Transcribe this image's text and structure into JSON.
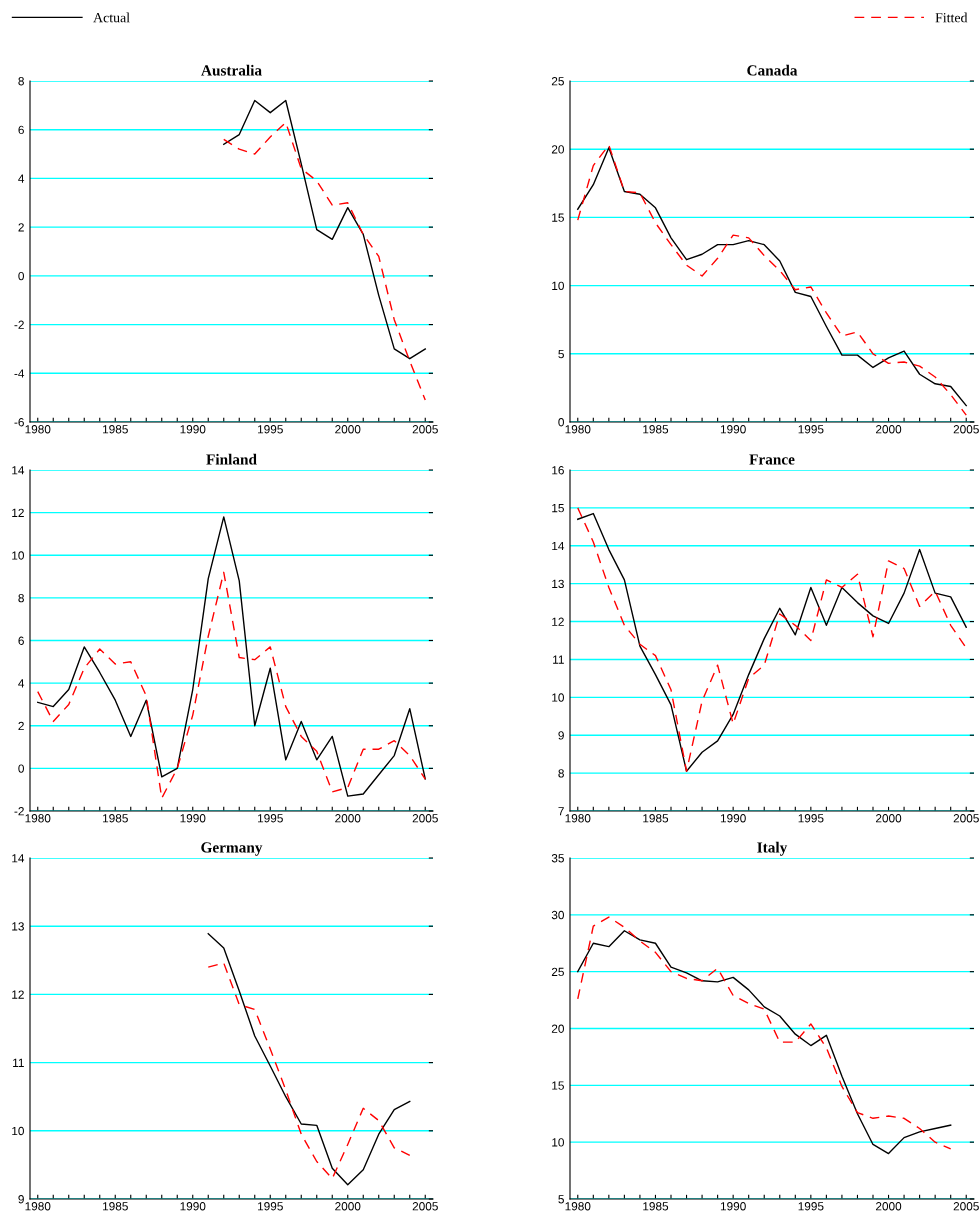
{
  "chart_data": [
    {
      "type": "line",
      "title": "Australia",
      "legend": "top",
      "grid": "y",
      "xlim": [
        1979.5,
        2005.5
      ],
      "ylim": [
        -6,
        8
      ],
      "yticks": [
        -6,
        -4,
        -2,
        0,
        2,
        4,
        6,
        8
      ],
      "xticks": [
        1980,
        {
          "value": 1981,
          "label": null
        },
        {
          "value": 1982,
          "label": null
        },
        {
          "value": 1983,
          "label": null
        },
        {
          "value": 1984,
          "label": null
        },
        1985,
        {
          "value": 1986,
          "label": null
        },
        {
          "value": 1987,
          "label": null
        },
        {
          "value": 1988,
          "label": null
        },
        {
          "value": 1989,
          "label": null
        },
        1990,
        {
          "value": 1991,
          "label": null
        },
        {
          "value": 1992,
          "label": null
        },
        {
          "value": 1993,
          "label": null
        },
        {
          "value": 1994,
          "label": null
        },
        1995,
        {
          "value": 1996,
          "label": null
        },
        {
          "value": 1997,
          "label": null
        },
        {
          "value": 1998,
          "label": null
        },
        {
          "value": 1999,
          "label": null
        },
        2000,
        {
          "value": 2001,
          "label": null
        },
        {
          "value": 2002,
          "label": null
        },
        {
          "value": 2003,
          "label": null
        },
        {
          "value": 2004,
          "label": null
        },
        2005
      ],
      "x": [
        1992,
        1993,
        1994,
        1995,
        1996,
        1997,
        1998,
        1999,
        2000,
        2001,
        2002,
        2003,
        2004,
        2005
      ],
      "series": [
        {
          "name": "Actual",
          "color": "#000000",
          "line_style": "solid",
          "values": [
            5.4,
            5.8,
            7.2,
            6.7,
            7.2,
            4.6,
            1.9,
            1.5,
            2.8,
            1.7,
            -0.8,
            -3.0,
            -3.4,
            -3.0
          ]
        },
        {
          "name": "Fitted",
          "color": "#ff0000",
          "line_style": "dashed",
          "values": [
            5.6,
            5.2,
            5.0,
            5.7,
            6.3,
            4.4,
            3.9,
            2.9,
            3.0,
            1.7,
            0.8,
            -1.8,
            -3.5,
            -5.1
          ]
        }
      ]
    },
    {
      "type": "line",
      "title": "Canada",
      "grid": "y",
      "xlim": [
        1979.5,
        2005.5
      ],
      "ylim": [
        0,
        25
      ],
      "yticks": [
        0,
        5,
        10,
        15,
        20,
        25
      ],
      "xticks": [
        1980,
        {
          "value": 1981,
          "label": null
        },
        {
          "value": 1982,
          "label": null
        },
        {
          "value": 1983,
          "label": null
        },
        {
          "value": 1984,
          "label": null
        },
        1985,
        {
          "value": 1986,
          "label": null
        },
        {
          "value": 1987,
          "label": null
        },
        {
          "value": 1988,
          "label": null
        },
        {
          "value": 1989,
          "label": null
        },
        1990,
        {
          "value": 1991,
          "label": null
        },
        {
          "value": 1992,
          "label": null
        },
        {
          "value": 1993,
          "label": null
        },
        {
          "value": 1994,
          "label": null
        },
        1995,
        {
          "value": 1996,
          "label": null
        },
        {
          "value": 1997,
          "label": null
        },
        {
          "value": 1998,
          "label": null
        },
        {
          "value": 1999,
          "label": null
        },
        2000,
        {
          "value": 2001,
          "label": null
        },
        {
          "value": 2002,
          "label": null
        },
        {
          "value": 2003,
          "label": null
        },
        {
          "value": 2004,
          "label": null
        },
        2005
      ],
      "x": [
        1980,
        1981,
        1982,
        1983,
        1984,
        1985,
        1986,
        1987,
        1988,
        1989,
        1990,
        1991,
        1992,
        1993,
        1994,
        1995,
        1996,
        1997,
        1998,
        1999,
        2000,
        2001,
        2002,
        2003,
        2004,
        2005
      ],
      "series": [
        {
          "color": "#000000",
          "line_style": "solid",
          "values": [
            15.6,
            17.4,
            20.1,
            16.9,
            16.7,
            15.7,
            13.5,
            11.9,
            12.3,
            13.0,
            13.0,
            13.3,
            13.0,
            11.8,
            9.5,
            9.2,
            7.0,
            4.9,
            4.9,
            4.0,
            4.7,
            5.2,
            3.5,
            2.8,
            2.6,
            1.2
          ]
        },
        {
          "color": "#ff0000",
          "line_style": "dashed",
          "values": [
            14.8,
            18.8,
            20.3,
            16.9,
            16.8,
            14.6,
            13.0,
            11.5,
            10.7,
            12.0,
            13.7,
            13.5,
            12.2,
            11.1,
            9.7,
            9.9,
            8.0,
            6.3,
            6.6,
            5.0,
            4.3,
            4.4,
            4.1,
            3.3,
            2.0,
            0.5
          ]
        }
      ]
    },
    {
      "type": "line",
      "title": "Finland",
      "grid": "y",
      "xlim": [
        1979.5,
        2005.5
      ],
      "ylim": [
        -2,
        14
      ],
      "yticks": [
        -2,
        0,
        2,
        4,
        6,
        8,
        10,
        12,
        14
      ],
      "xticks": [
        1980,
        {
          "value": 1981,
          "label": null
        },
        {
          "value": 1982,
          "label": null
        },
        {
          "value": 1983,
          "label": null
        },
        {
          "value": 1984,
          "label": null
        },
        1985,
        {
          "value": 1986,
          "label": null
        },
        {
          "value": 1987,
          "label": null
        },
        {
          "value": 1988,
          "label": null
        },
        {
          "value": 1989,
          "label": null
        },
        1990,
        {
          "value": 1991,
          "label": null
        },
        {
          "value": 1992,
          "label": null
        },
        {
          "value": 1993,
          "label": null
        },
        {
          "value": 1994,
          "label": null
        },
        1995,
        {
          "value": 1996,
          "label": null
        },
        {
          "value": 1997,
          "label": null
        },
        {
          "value": 1998,
          "label": null
        },
        {
          "value": 1999,
          "label": null
        },
        2000,
        {
          "value": 2001,
          "label": null
        },
        {
          "value": 2002,
          "label": null
        },
        {
          "value": 2003,
          "label": null
        },
        {
          "value": 2004,
          "label": null
        },
        2005
      ],
      "x": [
        1980,
        1981,
        1982,
        1983,
        1984,
        1985,
        1986,
        1987,
        1988,
        1989,
        1990,
        1991,
        1992,
        1993,
        1994,
        1995,
        1996,
        1997,
        1998,
        1999,
        2000,
        2001,
        2002,
        2003,
        2004,
        2005
      ],
      "series": [
        {
          "color": "#000000",
          "line_style": "solid",
          "values": [
            3.1,
            2.9,
            3.7,
            5.7,
            4.5,
            3.2,
            1.5,
            3.2,
            -0.4,
            0.0,
            3.7,
            8.9,
            11.8,
            8.8,
            2.0,
            4.7,
            0.4,
            2.2,
            0.4,
            1.5,
            -1.3,
            -1.2,
            -0.3,
            0.6,
            2.8,
            -0.5
          ]
        },
        {
          "color": "#ff0000",
          "line_style": "dashed",
          "values": [
            3.6,
            2.2,
            3.0,
            4.7,
            5.6,
            4.9,
            5.0,
            3.4,
            -1.4,
            0.0,
            2.5,
            6.2,
            9.2,
            5.2,
            5.1,
            5.7,
            2.9,
            1.5,
            0.8,
            -1.1,
            -0.9,
            0.9,
            0.9,
            1.3,
            0.6,
            -0.5
          ]
        }
      ]
    },
    {
      "type": "line",
      "title": "France",
      "grid": "y",
      "xlim": [
        1979.5,
        2005.5
      ],
      "ylim": [
        7,
        16
      ],
      "yticks": [
        7,
        8,
        9,
        10,
        11,
        12,
        13,
        14,
        15,
        16
      ],
      "xticks": [
        1980,
        {
          "value": 1981,
          "label": null
        },
        {
          "value": 1982,
          "label": null
        },
        {
          "value": 1983,
          "label": null
        },
        {
          "value": 1984,
          "label": null
        },
        1985,
        {
          "value": 1986,
          "label": null
        },
        {
          "value": 1987,
          "label": null
        },
        {
          "value": 1988,
          "label": null
        },
        {
          "value": 1989,
          "label": null
        },
        1990,
        {
          "value": 1991,
          "label": null
        },
        {
          "value": 1992,
          "label": null
        },
        {
          "value": 1993,
          "label": null
        },
        {
          "value": 1994,
          "label": null
        },
        1995,
        {
          "value": 1996,
          "label": null
        },
        {
          "value": 1997,
          "label": null
        },
        {
          "value": 1998,
          "label": null
        },
        {
          "value": 1999,
          "label": null
        },
        2000,
        {
          "value": 2001,
          "label": null
        },
        {
          "value": 2002,
          "label": null
        },
        {
          "value": 2003,
          "label": null
        },
        {
          "value": 2004,
          "label": null
        },
        2005
      ],
      "x": [
        1980,
        1981,
        1982,
        1983,
        1984,
        1985,
        1986,
        1987,
        1988,
        1989,
        1990,
        1991,
        1992,
        1993,
        1994,
        1995,
        1996,
        1997,
        1998,
        1999,
        2000,
        2001,
        2002,
        2003,
        2004,
        2005
      ],
      "series": [
        {
          "color": "#000000",
          "line_style": "solid",
          "values": [
            14.7,
            14.85,
            13.9,
            13.1,
            11.35,
            10.6,
            9.8,
            8.05,
            8.55,
            8.85,
            9.55,
            10.6,
            11.55,
            12.35,
            11.65,
            12.9,
            11.9,
            12.9,
            12.5,
            12.15,
            11.95,
            12.75,
            13.9,
            12.75,
            12.65,
            11.85
          ]
        },
        {
          "color": "#ff0000",
          "line_style": "dashed",
          "values": [
            15.0,
            14.1,
            12.9,
            11.9,
            11.4,
            11.1,
            10.2,
            8.05,
            9.9,
            10.85,
            9.3,
            10.5,
            10.85,
            12.2,
            11.9,
            11.5,
            13.1,
            12.9,
            13.25,
            11.6,
            13.6,
            13.4,
            12.4,
            12.8,
            11.9,
            11.3
          ]
        }
      ]
    },
    {
      "type": "line",
      "title": "Germany",
      "grid": "y",
      "xlim": [
        1979.5,
        2005.5
      ],
      "ylim": [
        9,
        14
      ],
      "yticks": [
        9,
        10,
        11,
        12,
        13,
        14
      ],
      "xticks": [
        1980,
        {
          "value": 1981,
          "label": null
        },
        {
          "value": 1982,
          "label": null
        },
        {
          "value": 1983,
          "label": null
        },
        {
          "value": 1984,
          "label": null
        },
        1985,
        {
          "value": 1986,
          "label": null
        },
        {
          "value": 1987,
          "label": null
        },
        {
          "value": 1988,
          "label": null
        },
        {
          "value": 1989,
          "label": null
        },
        1990,
        {
          "value": 1991,
          "label": null
        },
        {
          "value": 1992,
          "label": null
        },
        {
          "value": 1993,
          "label": null
        },
        {
          "value": 1994,
          "label": null
        },
        1995,
        {
          "value": 1996,
          "label": null
        },
        {
          "value": 1997,
          "label": null
        },
        {
          "value": 1998,
          "label": null
        },
        {
          "value": 1999,
          "label": null
        },
        2000,
        {
          "value": 2001,
          "label": null
        },
        {
          "value": 2002,
          "label": null
        },
        {
          "value": 2003,
          "label": null
        },
        {
          "value": 2004,
          "label": null
        },
        2005
      ],
      "x": [
        1991,
        1992,
        1993,
        1994,
        1995,
        1996,
        1997,
        1998,
        1999,
        2000,
        2001,
        2002,
        2003,
        2004
      ],
      "series": [
        {
          "color": "#000000",
          "line_style": "solid",
          "values": [
            12.89,
            12.68,
            12.05,
            11.39,
            10.95,
            10.5,
            10.1,
            10.08,
            9.45,
            9.21,
            9.43,
            9.95,
            10.31,
            10.43
          ]
        },
        {
          "color": "#ff0000",
          "line_style": "dashed",
          "values": [
            12.4,
            12.46,
            11.85,
            11.78,
            11.2,
            10.6,
            9.95,
            9.55,
            9.3,
            9.8,
            10.33,
            10.15,
            9.75,
            9.64
          ]
        }
      ]
    },
    {
      "type": "line",
      "title": "Italy",
      "grid": "y",
      "xlim": [
        1979.5,
        2005.5
      ],
      "ylim": [
        5,
        35
      ],
      "yticks": [
        5,
        10,
        15,
        20,
        25,
        30,
        35
      ],
      "xticks": [
        1980,
        {
          "value": 1981,
          "label": null
        },
        {
          "value": 1982,
          "label": null
        },
        {
          "value": 1983,
          "label": null
        },
        {
          "value": 1984,
          "label": null
        },
        1985,
        {
          "value": 1986,
          "label": null
        },
        {
          "value": 1987,
          "label": null
        },
        {
          "value": 1988,
          "label": null
        },
        {
          "value": 1989,
          "label": null
        },
        1990,
        {
          "value": 1991,
          "label": null
        },
        {
          "value": 1992,
          "label": null
        },
        {
          "value": 1993,
          "label": null
        },
        {
          "value": 1994,
          "label": null
        },
        1995,
        {
          "value": 1996,
          "label": null
        },
        {
          "value": 1997,
          "label": null
        },
        {
          "value": 1998,
          "label": null
        },
        {
          "value": 1999,
          "label": null
        },
        2000,
        {
          "value": 2001,
          "label": null
        },
        {
          "value": 2002,
          "label": null
        },
        {
          "value": 2003,
          "label": null
        },
        {
          "value": 2004,
          "label": null
        },
        2005
      ],
      "x": [
        1980,
        1981,
        1982,
        1983,
        1984,
        1985,
        1986,
        1987,
        1988,
        1989,
        1990,
        1991,
        1992,
        1993,
        1994,
        1995,
        1996,
        1997,
        1998,
        1999,
        2000,
        2001,
        2002,
        2003,
        2004
      ],
      "series": [
        {
          "color": "#000000",
          "line_style": "solid",
          "values": [
            25.0,
            27.5,
            27.2,
            28.6,
            27.8,
            27.5,
            25.4,
            24.9,
            24.2,
            24.1,
            24.5,
            23.4,
            21.9,
            21.1,
            19.5,
            18.5,
            19.4,
            15.8,
            12.5,
            9.8,
            9.0,
            10.4,
            10.9,
            11.2,
            11.5
          ]
        },
        {
          "color": "#ff0000",
          "line_style": "dashed",
          "values": [
            22.6,
            29.0,
            29.8,
            28.9,
            27.7,
            26.7,
            25.0,
            24.4,
            24.2,
            25.3,
            22.9,
            22.2,
            21.7,
            18.8,
            18.8,
            20.4,
            18.3,
            14.9,
            12.6,
            12.1,
            12.3,
            12.1,
            11.2,
            10.0,
            9.4
          ]
        }
      ]
    }
  ]
}
